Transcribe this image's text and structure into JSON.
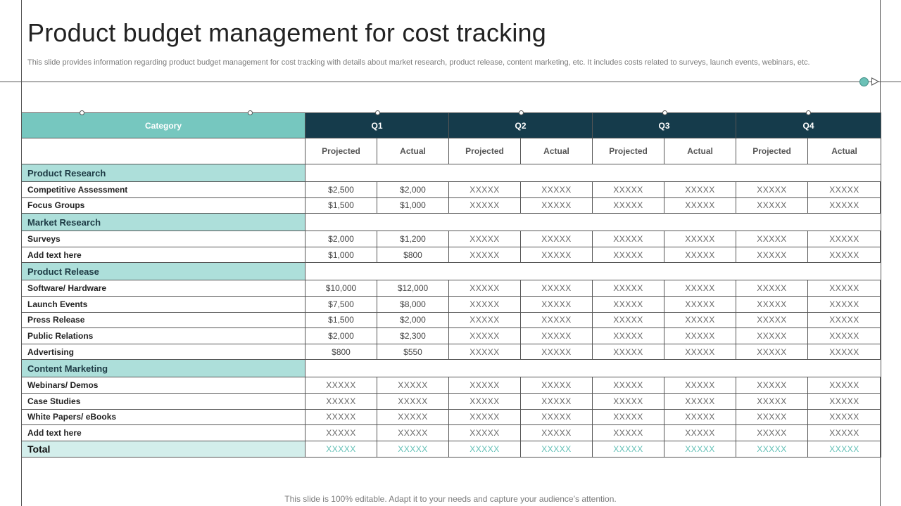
{
  "slide": {
    "title": "Product budget management for cost tracking",
    "subtitle": "This slide provides information regarding product budget management for cost tracking with details about market research, product release, content marketing, etc. It includes costs related to surveys, launch events, webinars, etc.",
    "footer": "This slide is 100% editable. Adapt it to your needs and capture your audience’s attention."
  },
  "table": {
    "category_header": "Category",
    "quarters": [
      "Q1",
      "Q2",
      "Q3",
      "Q4"
    ],
    "sub_headers": [
      "Projected",
      "Actual"
    ],
    "sections": [
      {
        "name": "Product Research",
        "items": [
          {
            "label": "Competitive Assessment",
            "values": [
              "$2,500",
              "$2,000",
              "XXXXX",
              "XXXXX",
              "XXXXX",
              "XXXXX",
              "XXXXX",
              "XXXXX"
            ]
          },
          {
            "label": "Focus Groups",
            "values": [
              "$1,500",
              "$1,000",
              "XXXXX",
              "XXXXX",
              "XXXXX",
              "XXXXX",
              "XXXXX",
              "XXXXX"
            ]
          }
        ]
      },
      {
        "name": "Market Research",
        "items": [
          {
            "label": "Surveys",
            "values": [
              "$2,000",
              "$1,200",
              "XXXXX",
              "XXXXX",
              "XXXXX",
              "XXXXX",
              "XXXXX",
              "XXXXX"
            ]
          },
          {
            "label": "Add text here",
            "values": [
              "$1,000",
              "$800",
              "XXXXX",
              "XXXXX",
              "XXXXX",
              "XXXXX",
              "XXXXX",
              "XXXXX"
            ]
          }
        ]
      },
      {
        "name": "Product Release",
        "items": [
          {
            "label": "Software/ Hardware",
            "values": [
              "$10,000",
              "$12,000",
              "XXXXX",
              "XXXXX",
              "XXXXX",
              "XXXXX",
              "XXXXX",
              "XXXXX"
            ]
          },
          {
            "label": "Launch Events",
            "values": [
              "$7,500",
              "$8,000",
              "XXXXX",
              "XXXXX",
              "XXXXX",
              "XXXXX",
              "XXXXX",
              "XXXXX"
            ]
          },
          {
            "label": "Press Release",
            "values": [
              "$1,500",
              "$2,000",
              "XXXXX",
              "XXXXX",
              "XXXXX",
              "XXXXX",
              "XXXXX",
              "XXXXX"
            ]
          },
          {
            "label": "Public Relations",
            "values": [
              "$2,000",
              "$2,300",
              "XXXXX",
              "XXXXX",
              "XXXXX",
              "XXXXX",
              "XXXXX",
              "XXXXX"
            ]
          },
          {
            "label": "Advertising",
            "values": [
              "$800",
              "$550",
              "XXXXX",
              "XXXXX",
              "XXXXX",
              "XXXXX",
              "XXXXX",
              "XXXXX"
            ]
          }
        ]
      },
      {
        "name": "Content Marketing",
        "items": [
          {
            "label": "Webinars/ Demos",
            "values": [
              "XXXXX",
              "XXXXX",
              "XXXXX",
              "XXXXX",
              "XXXXX",
              "XXXXX",
              "XXXXX",
              "XXXXX"
            ]
          },
          {
            "label": "Case Studies",
            "values": [
              "XXXXX",
              "XXXXX",
              "XXXXX",
              "XXXXX",
              "XXXXX",
              "XXXXX",
              "XXXXX",
              "XXXXX"
            ]
          },
          {
            "label": "White Papers/ eBooks",
            "values": [
              "XXXXX",
              "XXXXX",
              "XXXXX",
              "XXXXX",
              "XXXXX",
              "XXXXX",
              "XXXXX",
              "XXXXX"
            ]
          },
          {
            "label": "Add text here",
            "values": [
              "XXXXX",
              "XXXXX",
              "XXXXX",
              "XXXXX",
              "XXXXX",
              "XXXXX",
              "XXXXX",
              "XXXXX"
            ]
          }
        ]
      }
    ],
    "total": {
      "label": "Total",
      "values": [
        "XXXXX",
        "XXXXX",
        "XXXXX",
        "XXXXX",
        "XXXXX",
        "XXXXX",
        "XXXXX",
        "XXXXX"
      ]
    }
  },
  "colors": {
    "header_dark": "#153b4b",
    "header_teal": "#76c7bf",
    "section_fill": "#addfda",
    "total_fill": "#d3eeeb",
    "total_text": "#62c0b6"
  }
}
